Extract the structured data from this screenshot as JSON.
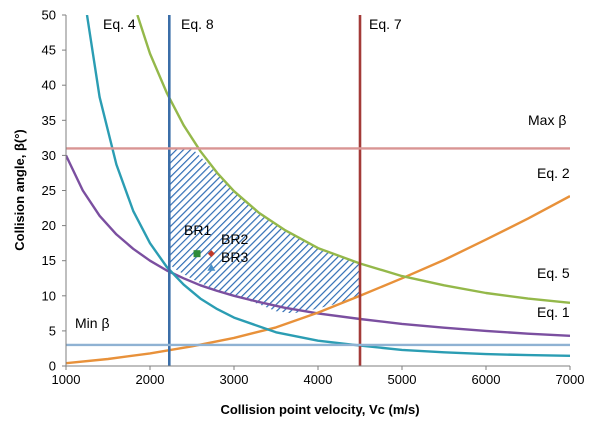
{
  "chart_data": {
    "type": "line",
    "xlabel": "Collision point velocity, Vc (m/s)",
    "ylabel": "Collision angle, β(°)",
    "xlim": [
      1000,
      7000
    ],
    "ylim": [
      0,
      50
    ],
    "x_ticks": [
      1000,
      2000,
      3000,
      4000,
      5000,
      6000,
      7000
    ],
    "y_ticks": [
      0,
      5,
      10,
      15,
      20,
      25,
      30,
      35,
      40,
      45,
      50
    ],
    "grid": false,
    "colors": {
      "eq1": "#7b4fa0",
      "eq2": "#e8913a",
      "eq4": "#2b9db3",
      "eq5": "#94b84a",
      "eq7": "#a33b38",
      "eq8": "#3b6ea8",
      "max_beta": "#d99594",
      "min_beta": "#8fb2d3",
      "hatch": "#2f6db5",
      "br1": "#2e8b3a",
      "br2": "#c0392b",
      "br3": "#4a90c8"
    },
    "series": [
      {
        "name": "Eq. 1",
        "x": [
          1000,
          1200,
          1400,
          1600,
          1800,
          2000,
          2200,
          2400,
          2600,
          2800,
          3000,
          3300,
          3600,
          4000,
          4500,
          5000,
          5500,
          6000,
          6500,
          7000
        ],
        "y": [
          30,
          25,
          21.4,
          18.75,
          16.7,
          15,
          13.6,
          12.5,
          11.5,
          10.7,
          10,
          9.1,
          8.3,
          7.5,
          6.7,
          6,
          5.45,
          5,
          4.6,
          4.3
        ]
      },
      {
        "name": "Eq. 2",
        "x": [
          1000,
          1500,
          2000,
          2500,
          3000,
          3500,
          4000,
          4500,
          5000,
          5500,
          6000,
          6500,
          7000
        ],
        "y": [
          0.4,
          1.0,
          1.8,
          2.8,
          4.0,
          5.5,
          7.6,
          10.0,
          12.5,
          15.1,
          18.0,
          21.0,
          24.2
        ]
      },
      {
        "name": "Eq. 4",
        "x": [
          1250,
          1400,
          1600,
          1800,
          2000,
          2200,
          2400,
          2600,
          2800,
          3000,
          3500,
          4000,
          4500,
          5000,
          5500,
          6000,
          6500,
          7000
        ],
        "y": [
          50,
          38.3,
          28.7,
          22.1,
          17.5,
          14.1,
          11.6,
          9.6,
          8.1,
          6.9,
          4.8,
          3.6,
          2.9,
          2.3,
          1.95,
          1.7,
          1.55,
          1.45
        ]
      },
      {
        "name": "Eq. 5",
        "x": [
          1850,
          2000,
          2200,
          2400,
          2600,
          2800,
          3000,
          3300,
          3600,
          4000,
          4500,
          5000,
          5500,
          6000,
          6500,
          7000
        ],
        "y": [
          50,
          44.5,
          38.9,
          34.3,
          30.6,
          27.5,
          24.9,
          21.8,
          19.4,
          16.8,
          14.6,
          12.8,
          11.5,
          10.4,
          9.6,
          9.0
        ]
      },
      {
        "name": "Eq. 7",
        "x": [
          4500,
          4500
        ],
        "y": [
          0,
          50
        ]
      },
      {
        "name": "Eq. 8",
        "x": [
          2230,
          2230
        ],
        "y": [
          0,
          50
        ]
      },
      {
        "name": "Max β",
        "x": [
          1000,
          7000
        ],
        "y": [
          31,
          31
        ]
      },
      {
        "name": "Min β",
        "x": [
          1000,
          7000
        ],
        "y": [
          3,
          3
        ]
      }
    ],
    "weldability_window": {
      "x": [
        2230,
        2500,
        2900,
        3300,
        3600,
        4000,
        4500,
        4500,
        4400,
        4100,
        3900,
        3700,
        3500,
        3300,
        3000,
        2700,
        2500,
        2300,
        2230
      ],
      "y": [
        31,
        31,
        26.2,
        21.8,
        19.4,
        16.8,
        14.6,
        9.8,
        9.4,
        8.5,
        7.9,
        7.5,
        7.8,
        8.8,
        10.0,
        11.3,
        12.4,
        13.8,
        14.5
      ]
    },
    "points": [
      {
        "name": "BR1",
        "x": 2560,
        "y": 16,
        "marker": "square"
      },
      {
        "name": "BR2",
        "x": 2730,
        "y": 16,
        "marker": "diamond"
      },
      {
        "name": "BR3",
        "x": 2730,
        "y": 14,
        "marker": "triangle"
      }
    ],
    "annotations": [
      "Eq. 4",
      "Eq. 8",
      "Eq. 7",
      "Max β",
      "Eq. 2",
      "Eq. 5",
      "Eq. 1",
      "Min β",
      "BR1",
      "BR2",
      "BR3"
    ]
  }
}
